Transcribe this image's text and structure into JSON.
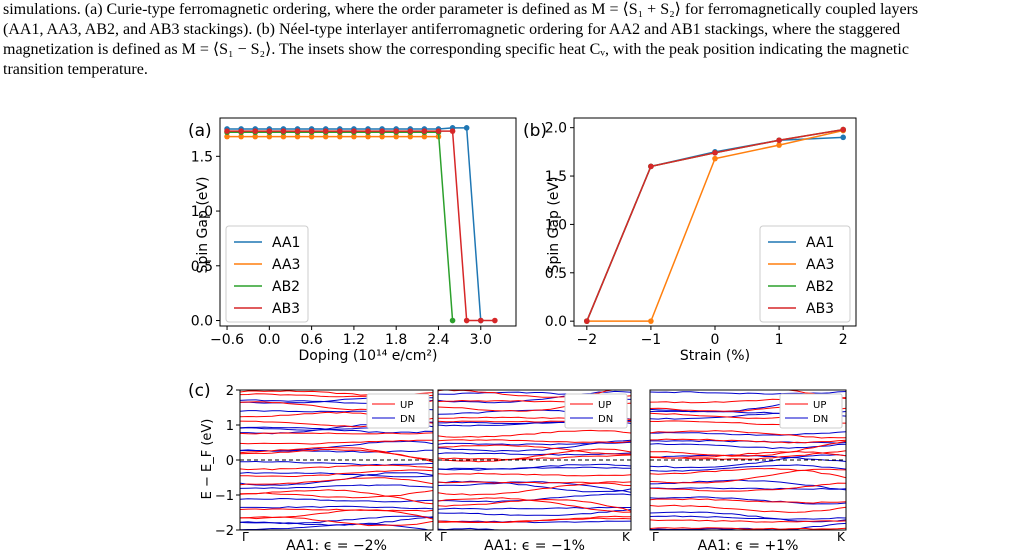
{
  "caption": {
    "line1": "simulations. (a) Curie-type ferromagnetic ordering, where the order parameter is defined as M = ⟨S₁ + S₂⟩ for ferromagnetically coupled layers",
    "line2": "(AA1, AA3, AB2, and AB3 stackings). (b) Néel-type interlayer antiferromagnetic ordering for AA2 and AB1 stackings, where the staggered",
    "line3": "magnetization is defined as M = ⟨S₁ − S₂⟩. The insets show the corresponding specific heat Cᵥ, with the peak position indicating the magnetic",
    "line4": "transition temperature."
  },
  "colors": {
    "AA1": "#1f77b4",
    "AA3": "#ff7f0e",
    "AB2": "#2ca02c",
    "AB3": "#d62728",
    "UP": "#ff0000",
    "DN": "#0000cc"
  },
  "chart_data": [
    {
      "panel": "(a)",
      "type": "line",
      "xlabel": "Doping (10¹⁴ e/cm²)",
      "ylabel": "Spin Gap (eV)",
      "xlim": [
        -0.7,
        3.5
      ],
      "ylim": [
        -0.05,
        1.85
      ],
      "xticks": [
        "−0.6",
        "0.0",
        "0.6",
        "1.2",
        "1.8",
        "2.4",
        "3.0"
      ],
      "xtick_values": [
        -0.6,
        0.0,
        0.6,
        1.2,
        1.8,
        2.4,
        3.0
      ],
      "yticks": [
        "0.0",
        "0.5",
        "1.0",
        "1.5"
      ],
      "ytick_values": [
        0.0,
        0.5,
        1.0,
        1.5
      ],
      "legend_position": "lower-left",
      "series": [
        {
          "name": "AA1",
          "x": [
            -0.6,
            -0.4,
            -0.2,
            0.0,
            0.2,
            0.4,
            0.6,
            0.8,
            1.0,
            1.2,
            1.4,
            1.6,
            1.8,
            2.0,
            2.2,
            2.4,
            2.6,
            2.8,
            3.0
          ],
          "y": [
            1.75,
            1.75,
            1.75,
            1.75,
            1.75,
            1.75,
            1.75,
            1.75,
            1.75,
            1.75,
            1.75,
            1.75,
            1.75,
            1.75,
            1.75,
            1.75,
            1.76,
            1.76,
            0.0
          ]
        },
        {
          "name": "AA3",
          "x": [
            -0.6,
            -0.4,
            -0.2,
            0.0,
            0.2,
            0.4,
            0.6,
            0.8,
            1.0,
            1.2,
            1.4,
            1.6,
            1.8,
            2.0,
            2.2,
            2.4
          ],
          "y": [
            1.68,
            1.68,
            1.68,
            1.68,
            1.68,
            1.68,
            1.68,
            1.68,
            1.68,
            1.68,
            1.68,
            1.68,
            1.68,
            1.68,
            1.68,
            1.68
          ]
        },
        {
          "name": "AB2",
          "x": [
            -0.6,
            -0.4,
            -0.2,
            0.0,
            0.2,
            0.4,
            0.6,
            0.8,
            1.0,
            1.2,
            1.4,
            1.6,
            1.8,
            2.0,
            2.2,
            2.4,
            2.6
          ],
          "y": [
            1.72,
            1.72,
            1.72,
            1.72,
            1.72,
            1.72,
            1.72,
            1.72,
            1.72,
            1.72,
            1.72,
            1.72,
            1.72,
            1.72,
            1.72,
            1.72,
            0.0
          ]
        },
        {
          "name": "AB3",
          "x": [
            -0.6,
            -0.4,
            -0.2,
            0.0,
            0.2,
            0.4,
            0.6,
            0.8,
            1.0,
            1.2,
            1.4,
            1.6,
            1.8,
            2.0,
            2.2,
            2.4,
            2.6,
            2.8,
            3.0,
            3.2
          ],
          "y": [
            1.73,
            1.73,
            1.73,
            1.73,
            1.73,
            1.73,
            1.73,
            1.73,
            1.73,
            1.73,
            1.73,
            1.73,
            1.73,
            1.73,
            1.73,
            1.73,
            1.73,
            0.0,
            0.0,
            0.0
          ]
        }
      ]
    },
    {
      "panel": "(b)",
      "type": "line",
      "xlabel": "Strain (%)",
      "ylabel": "Spin Gap (eV)",
      "xlim": [
        -2.2,
        2.2
      ],
      "ylim": [
        -0.05,
        2.1
      ],
      "xticks": [
        "−2",
        "−1",
        "0",
        "1",
        "2"
      ],
      "xtick_values": [
        -2,
        -1,
        0,
        1,
        2
      ],
      "yticks": [
        "0.0",
        "0.5",
        "1.0",
        "1.5",
        "2.0"
      ],
      "ytick_values": [
        0.0,
        0.5,
        1.0,
        1.5,
        2.0
      ],
      "legend_position": "lower-right",
      "series": [
        {
          "name": "AA1",
          "x": [
            -2,
            -1,
            0,
            1,
            2
          ],
          "y": [
            0.0,
            1.6,
            1.75,
            1.87,
            1.9
          ]
        },
        {
          "name": "AA3",
          "x": [
            -2,
            -1,
            0,
            1,
            2
          ],
          "y": [
            0.0,
            0.0,
            1.68,
            1.82,
            1.97
          ]
        },
        {
          "name": "AB2",
          "x": [
            -2,
            -1,
            0,
            1,
            2
          ],
          "y": [
            0.0,
            1.6,
            1.74,
            1.87,
            1.98
          ]
        },
        {
          "name": "AB3",
          "x": [
            -2,
            -1,
            0,
            1,
            2
          ],
          "y": [
            0.0,
            1.6,
            1.74,
            1.87,
            1.98
          ]
        }
      ]
    },
    {
      "panel": "(c)",
      "type": "line",
      "ylabel": "E − E_F (eV)",
      "ylim": [
        -2,
        2
      ],
      "yticks": [
        "2",
        "1",
        "0",
        "−1",
        "−2"
      ],
      "ytick_values": [
        2,
        1,
        0,
        -1,
        -2
      ],
      "kpoints": [
        "Γ",
        "K"
      ],
      "legend": [
        "UP",
        "DN"
      ],
      "subpanels": [
        {
          "label": "AA1: ϵ = −2%"
        },
        {
          "label": "AA1: ϵ = −1%"
        },
        {
          "label": "AA1: ϵ = +1%"
        }
      ]
    }
  ]
}
